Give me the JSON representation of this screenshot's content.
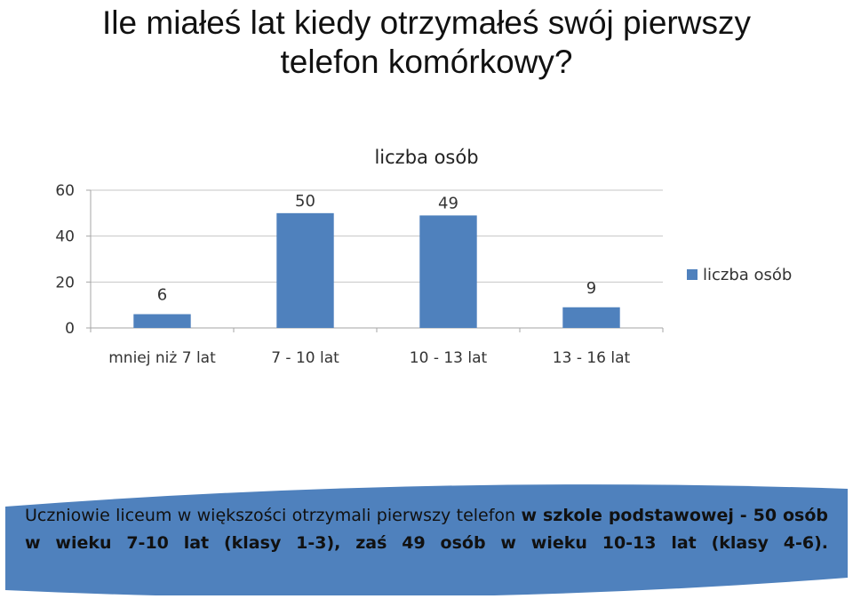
{
  "slide": {
    "title_line1": "Ile miałeś lat kiedy otrzymałeś swój pierwszy",
    "title_line2": "telefon komórkowy?"
  },
  "chart_data": {
    "type": "bar",
    "title": "liczba osób",
    "categories": [
      "mniej niż 7 lat",
      "7 - 10 lat",
      "10 - 13 lat",
      "13 - 16 lat"
    ],
    "series": [
      {
        "name": "liczba osób",
        "values": [
          6,
          50,
          49,
          9
        ],
        "color": "#4F81BD"
      }
    ],
    "data_labels": [
      "6",
      "50",
      "49",
      "9"
    ],
    "ylim": [
      0,
      60
    ],
    "yticks": [
      0,
      20,
      40,
      60
    ],
    "ytick_labels": [
      "0",
      "20",
      "40",
      "60"
    ],
    "grid": true,
    "legend": "right",
    "xlabel": "",
    "ylabel": ""
  },
  "caption": {
    "part1": "Uczniowie liceum w większości otrzymali pierwszy telefon ",
    "part2": "w szkole podstawowej - 50 osób w wieku 7-10 lat (klasy 1-3), zaś 49 osób w wieku 10-13 lat (klasy 4-6).",
    "box_color": "#4F81BD"
  }
}
